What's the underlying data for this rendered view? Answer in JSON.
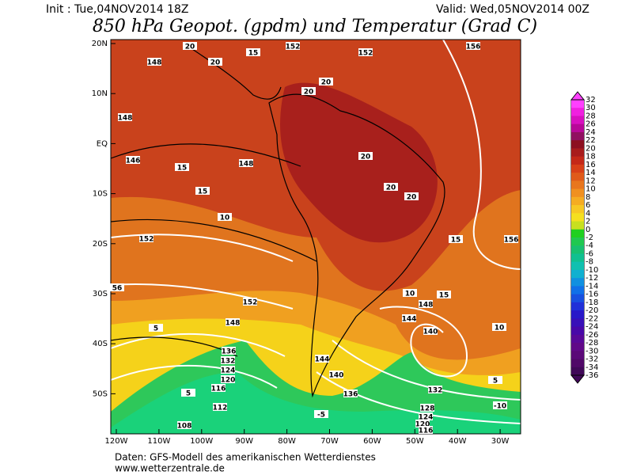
{
  "header": {
    "init": "Init : Tue,04NOV2014 18Z",
    "valid": "Valid: Wed,05NOV2014 00Z",
    "title": "850 hPa Geopot. (gpdm) und Temperatur (Grad C)"
  },
  "map": {
    "lat_labels": [
      "20N",
      "10N",
      "EQ",
      "10S",
      "20S",
      "30S",
      "40S",
      "50S"
    ],
    "lon_labels": [
      "120W",
      "110W",
      "100W",
      "90W",
      "80W",
      "70W",
      "60W",
      "50W",
      "40W",
      "30W"
    ],
    "contour_labels": [
      "148",
      "20",
      "20",
      "15",
      "152",
      "152",
      "156",
      "148",
      "146",
      "15",
      "148",
      "15",
      "20",
      "20",
      "20",
      "20",
      "20",
      "10",
      "152",
      "15",
      "156",
      "152",
      "10",
      "148",
      "15",
      "56",
      "5",
      "148",
      "144",
      "140",
      "10",
      "136",
      "132",
      "124",
      "120",
      "116",
      "5",
      "112",
      "108",
      "144",
      "140",
      "136",
      "132",
      "128",
      "124",
      "120",
      "116",
      "-5",
      "5",
      "-10"
    ]
  },
  "colorbar": {
    "labels": [
      32,
      30,
      28,
      26,
      24,
      22,
      20,
      18,
      16,
      14,
      12,
      10,
      8,
      6,
      4,
      2,
      0,
      -2,
      -4,
      -6,
      -8,
      -10,
      -12,
      -14,
      -16,
      -18,
      -20,
      -22,
      -24,
      -26,
      -28,
      -30,
      -32,
      -34,
      -36
    ]
  },
  "footer": {
    "source": "Daten: GFS-Modell des amerikanischen Wetterdienstes",
    "url": "www.wetterzentrale.de"
  }
}
